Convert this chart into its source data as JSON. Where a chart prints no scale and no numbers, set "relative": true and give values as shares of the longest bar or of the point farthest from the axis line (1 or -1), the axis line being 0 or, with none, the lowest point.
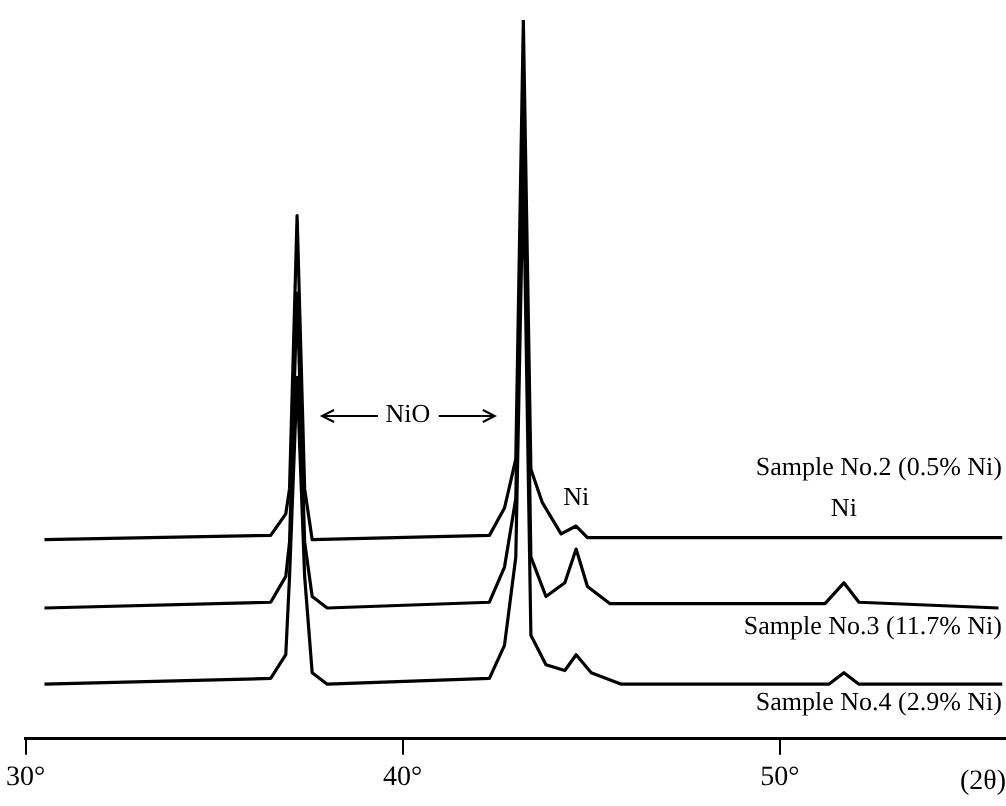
{
  "chart_data": {
    "type": "line",
    "relative": true,
    "xlabel": "(2θ)",
    "xlim": [
      30,
      56
    ],
    "xticks": [
      {
        "value": 30,
        "label": "30°"
      },
      {
        "value": 40,
        "label": "40°"
      },
      {
        "value": 50,
        "label": "50°"
      }
    ],
    "marker": "none",
    "line_style": "solid",
    "legend": false,
    "annotations": [
      "NiO",
      {
        "text": "Ni",
        "x": 44.6,
        "y": 0.296
      },
      {
        "text": "Ni",
        "x": 51.7,
        "y": 0.28
      }
    ],
    "series": [
      {
        "name": "Sample No.2 (0.5% Ni)",
        "color": "#000000",
        "x": [
          30.5,
          36.5,
          36.9,
          37.0,
          37.2,
          37.4,
          37.6,
          42.3,
          42.7,
          43.0,
          43.2,
          43.4,
          43.7,
          44.2,
          44.6,
          44.9,
          51.7,
          55.9
        ],
        "values": [
          0.277,
          0.283,
          0.313,
          0.348,
          0.728,
          0.348,
          0.277,
          0.283,
          0.321,
          0.389,
          1,
          0.375,
          0.329,
          0.285,
          0.296,
          0.28,
          0.28,
          0.28
        ]
      },
      {
        "name": "Sample No.3 (11.7% Ni)",
        "color": "#000000",
        "x": [
          30.5,
          36.5,
          36.9,
          37.0,
          37.2,
          37.4,
          37.6,
          38.0,
          42.3,
          42.7,
          43.0,
          43.2,
          43.4,
          43.8,
          44.3,
          44.6,
          44.9,
          45.5,
          51.2,
          51.7,
          52.1,
          55.8
        ],
        "values": [
          0.182,
          0.19,
          0.226,
          0.274,
          0.62,
          0.274,
          0.198,
          0.182,
          0.19,
          0.239,
          0.334,
          0.905,
          0.253,
          0.198,
          0.217,
          0.264,
          0.212,
          0.188,
          0.188,
          0.217,
          0.19,
          0.182
        ]
      },
      {
        "name": "Sample No.4 (2.9% Ni)",
        "color": "#000000",
        "x": [
          30.5,
          36.5,
          36.9,
          37.0,
          37.2,
          37.4,
          37.6,
          38.0,
          42.3,
          42.7,
          43.0,
          43.2,
          43.4,
          43.8,
          44.3,
          44.6,
          45.0,
          45.8,
          51.3,
          51.7,
          52.1,
          55.9
        ],
        "values": [
          0.076,
          0.084,
          0.117,
          0.226,
          0.503,
          0.226,
          0.092,
          0.076,
          0.084,
          0.13,
          0.253,
          0.796,
          0.144,
          0.103,
          0.095,
          0.117,
          0.092,
          0.076,
          0.076,
          0.092,
          0.076,
          0.076
        ]
      }
    ]
  }
}
